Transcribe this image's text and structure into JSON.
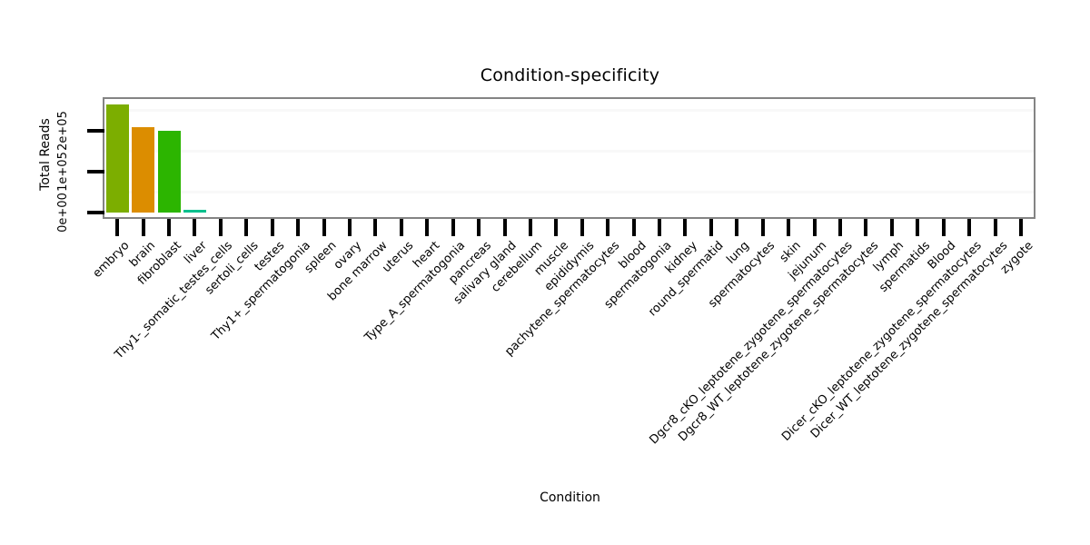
{
  "chart_data": {
    "type": "bar",
    "title": "Condition-specificity",
    "xlabel": "Condition",
    "ylabel": "Total Reads",
    "ylim": [
      0,
      280000
    ],
    "legend": "none",
    "grid": {
      "minor_lines": [
        50000,
        150000,
        250000
      ],
      "color": "#f8f8f8"
    },
    "frame_color": "#848484",
    "tick_color": "#000000",
    "yticks": [
      {
        "value": 0,
        "label": "0e+00"
      },
      {
        "value": 100000,
        "label": "1e+05"
      },
      {
        "value": 200000,
        "label": "2e+05"
      }
    ],
    "categories": [
      "embryo",
      "brain",
      "fibroblast",
      "liver",
      "Thy1-_somatic_testes_cells",
      "sertoli_cells",
      "testes",
      "Thy1+_spermatogonia",
      "spleen",
      "ovary",
      "bone marrow",
      "uterus",
      "heart",
      "Type_A_spermatogonia",
      "pancreas",
      "salivary gland",
      "cerebellum",
      "muscle",
      "epididymis",
      "pachytene_spermatocytes",
      "blood",
      "spermatogonia",
      "kidney",
      "round_spermatid",
      "lung",
      "spermatocytes",
      "skin",
      "jejunum",
      "Dgcr8_cKO_leptotene_zygotene_spermatocytes",
      "Dgcr8_WT_leptotene_zygotene_spermatocytes",
      "lymph",
      "spermatids",
      "Blood",
      "Dicer_cKO_leptotene_zygotene_spermatocytes",
      "Dicer_WT_leptotene_zygotene_spermatocytes",
      "zygote"
    ],
    "values": [
      265000,
      210000,
      200000,
      7000,
      0,
      0,
      0,
      0,
      0,
      0,
      0,
      0,
      0,
      0,
      0,
      0,
      0,
      0,
      0,
      0,
      0,
      0,
      0,
      0,
      0,
      0,
      0,
      0,
      0,
      0,
      0,
      0,
      0,
      0,
      0,
      0
    ],
    "bar_colors": [
      "#7CAE00",
      "#DC8D00",
      "#2CB500",
      "#00C08D",
      null,
      null,
      null,
      null,
      null,
      null,
      null,
      null,
      null,
      null,
      null,
      null,
      null,
      null,
      null,
      null,
      null,
      null,
      null,
      null,
      null,
      null,
      null,
      null,
      null,
      null,
      null,
      null,
      null,
      null,
      null,
      null
    ]
  }
}
